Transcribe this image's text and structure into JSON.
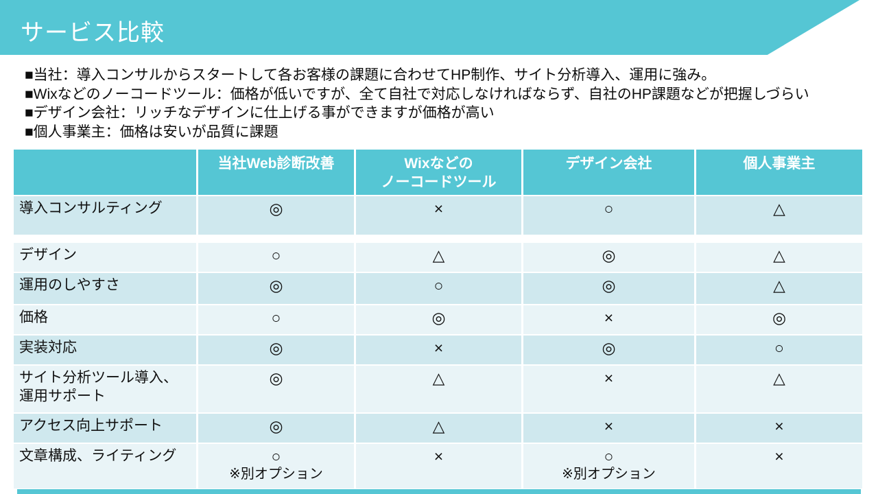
{
  "slide": {
    "title": "サービス比較"
  },
  "colors": {
    "accent": "#55c6d4",
    "row_dark": "#cfe8ee",
    "row_light": "#e9f4f7",
    "header_text": "#ffffff",
    "body_text": "#0c0c0c"
  },
  "bullets": [
    "■当社：導入コンサルからスタートして各お客様の課題に合わせてHP制作、サイト分析導入、運用に強み。",
    "■Wixなどのノーコードツール：価格が低いですが、全て自社で対応しなければならず、自社のHP課題などが把握しづらい",
    "■デザイン会社：リッチなデザインに仕上げる事ができますが価格が高い",
    "■個人事業主：価格は安いが品質に課題"
  ],
  "symbols_legend": {
    "double-circle-icon": "◎",
    "circle-icon": "○",
    "cross-icon": "×",
    "triangle-icon": "△"
  },
  "table": {
    "columns": [
      "",
      "当社Web診断改善",
      "Wixなどの\nノーコードツール",
      "デザイン会社",
      "個人事業主"
    ],
    "rows": [
      {
        "label": "導入コンサルティング",
        "values": [
          {
            "symbol": "◎"
          },
          {
            "symbol": "×"
          },
          {
            "symbol": "○"
          },
          {
            "symbol": "△"
          }
        ]
      },
      {
        "label": "デザイン",
        "values": [
          {
            "symbol": "○"
          },
          {
            "symbol": "△"
          },
          {
            "symbol": "◎"
          },
          {
            "symbol": "△"
          }
        ]
      },
      {
        "label": "運用のしやすさ",
        "values": [
          {
            "symbol": "◎"
          },
          {
            "symbol": "○"
          },
          {
            "symbol": "◎"
          },
          {
            "symbol": "△"
          }
        ]
      },
      {
        "label": "価格",
        "values": [
          {
            "symbol": "○"
          },
          {
            "symbol": "◎"
          },
          {
            "symbol": "×"
          },
          {
            "symbol": "◎"
          }
        ]
      },
      {
        "label": "実装対応",
        "values": [
          {
            "symbol": "◎"
          },
          {
            "symbol": "×"
          },
          {
            "symbol": "◎"
          },
          {
            "symbol": "○"
          }
        ]
      },
      {
        "label": "サイト分析ツール導入、運用サポート",
        "values": [
          {
            "symbol": "◎"
          },
          {
            "symbol": "△"
          },
          {
            "symbol": "×"
          },
          {
            "symbol": "△"
          }
        ]
      },
      {
        "label": "アクセス向上サポート",
        "values": [
          {
            "symbol": "◎"
          },
          {
            "symbol": "△"
          },
          {
            "symbol": "×"
          },
          {
            "symbol": "×"
          }
        ]
      },
      {
        "label": "文章構成、ライティング",
        "values": [
          {
            "symbol": "○",
            "note": "※別オプション"
          },
          {
            "symbol": "×"
          },
          {
            "symbol": "○",
            "note": "※別オプション"
          },
          {
            "symbol": "×"
          }
        ]
      }
    ]
  }
}
